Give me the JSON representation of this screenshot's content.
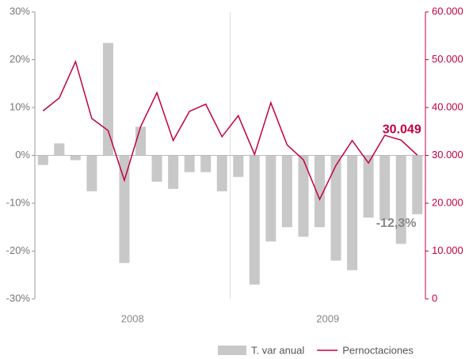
{
  "chart_data": {
    "type": "bar_line",
    "categories": [
      null,
      null,
      null,
      null,
      null,
      null,
      null,
      null,
      null,
      null,
      null,
      null,
      null,
      null,
      null,
      null,
      null,
      null,
      null,
      null,
      null,
      null,
      null,
      null
    ],
    "groups": [
      "2008",
      "2009"
    ],
    "series": [
      {
        "name": "T. var anual",
        "type": "bar",
        "color": "#c8c8c8",
        "axis": "y",
        "values": [
          -2,
          2.5,
          -1,
          -7.5,
          23.5,
          -22.5,
          6,
          -5.5,
          -7,
          -3.5,
          -3.5,
          -7.5,
          -4.5,
          -27,
          -18,
          -15,
          -17,
          -15,
          -22,
          -24,
          -13,
          -13.5,
          -18.5,
          -12.3
        ],
        "value_labels": [
          null,
          null,
          null,
          null,
          null,
          null,
          null,
          null,
          null,
          null,
          null,
          null,
          null,
          null,
          null,
          null,
          null,
          null,
          null,
          null,
          null,
          null,
          null,
          "-12,3%"
        ]
      },
      {
        "name": "Pernoctaciones",
        "type": "line",
        "color": "#c4003f",
        "axis": "y2",
        "values": [
          39300,
          42000,
          49600,
          37700,
          35200,
          24800,
          36000,
          43100,
          33100,
          39200,
          40700,
          33900,
          38300,
          30200,
          41000,
          32200,
          29100,
          20800,
          27900,
          33100,
          28400,
          34200,
          33200,
          30049
        ],
        "value_labels": [
          null,
          null,
          null,
          null,
          null,
          null,
          null,
          null,
          null,
          null,
          null,
          null,
          null,
          null,
          null,
          null,
          null,
          null,
          null,
          null,
          null,
          null,
          null,
          "30.049"
        ]
      }
    ],
    "ylim": [
      -30,
      30
    ],
    "yticks": [
      {
        "value": -30,
        "label": "-30%"
      },
      {
        "value": -20,
        "label": "-20%"
      },
      {
        "value": -10,
        "label": "-10%"
      },
      {
        "value": 0,
        "label": "0%"
      },
      {
        "value": 10,
        "label": "10%"
      },
      {
        "value": 20,
        "label": "20%"
      },
      {
        "value": 30,
        "label": "30%"
      }
    ],
    "y2lim": [
      0,
      60000
    ],
    "y2ticks": [
      0,
      {
        "value": 10000,
        "label": "10.000"
      },
      {
        "value": 20000,
        "label": "20.000"
      },
      {
        "value": 30000,
        "label": "30.000"
      },
      {
        "value": 40000,
        "label": "40.000"
      },
      {
        "value": 50000,
        "label": "50.000"
      },
      {
        "value": 60000,
        "label": "60.000"
      }
    ],
    "legend": "bottom-right"
  }
}
